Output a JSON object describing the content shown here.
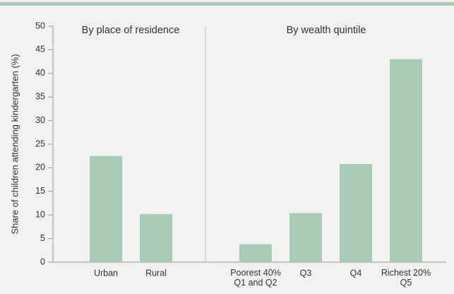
{
  "chart_data": {
    "type": "bar",
    "y_label": "Share of children attending kindergarten (%)",
    "color": "#a8cbb8",
    "ylim": [
      0,
      50
    ],
    "yticks": [
      0,
      5,
      10,
      15,
      20,
      25,
      30,
      35,
      40,
      45,
      50
    ],
    "groups": [
      {
        "label": "By place of residence",
        "categories": [
          "Urban",
          "Rural"
        ],
        "values": [
          22.5,
          10.2
        ]
      },
      {
        "label": "By wealth quintile",
        "categories": [
          "Poorest 40%\nQ1 and Q2",
          "Q3",
          "Q4",
          "Richest 20%\nQ5"
        ],
        "values": [
          3.8,
          10.4,
          20.8,
          43
        ]
      }
    ]
  }
}
